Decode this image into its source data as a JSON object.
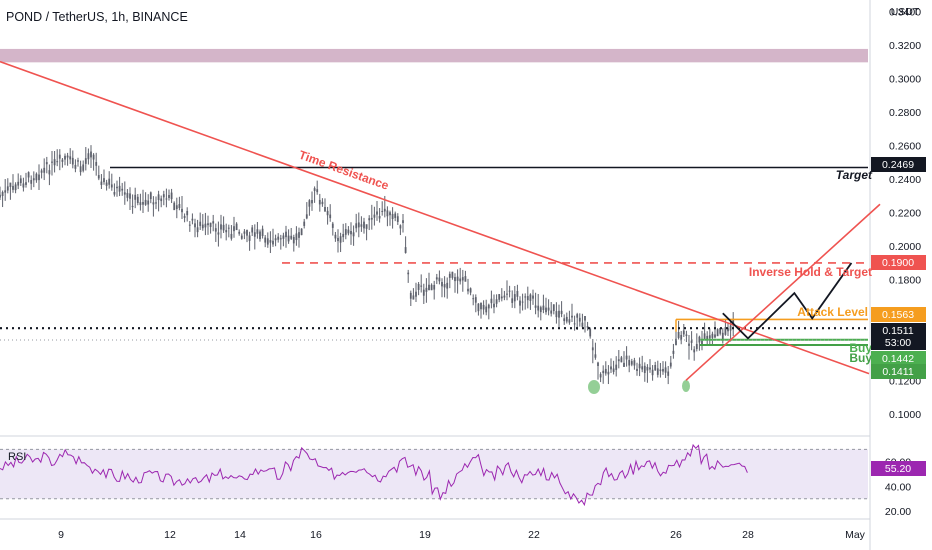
{
  "header": {
    "symbol": "POND / TetherUS, 1h, BINANCE"
  },
  "price_axis": {
    "unit": "USDT",
    "ticks": [
      "0.3400",
      "0.3200",
      "0.3000",
      "0.2800",
      "0.2600",
      "0.2400",
      "0.2200",
      "0.2000",
      "0.1800",
      "0.1200",
      "0.1000"
    ]
  },
  "time_axis": {
    "ticks": [
      "9",
      "12",
      "14",
      "16",
      "19",
      "22",
      "26",
      "28",
      "May"
    ]
  },
  "annotations": {
    "time_resistance": "Time Resistance",
    "target": "Target",
    "inverse": "Inverse Hold & Target",
    "attack": "Attack Level",
    "buy1": "Buy",
    "buy2": "Buy"
  },
  "price_labels": {
    "target": "0.2469",
    "inverse": "0.1900",
    "attack": "0.1563",
    "last": "0.1511",
    "countdown": "53:00",
    "buy1": "0.1442",
    "buy2": "0.1411"
  },
  "rsi": {
    "title": "RSI",
    "value_label": "55.20",
    "ticks": [
      "60.00",
      "40.00",
      "20.00"
    ]
  },
  "colors": {
    "red": "#ef5350",
    "black": "#131722",
    "orange": "#f59d1f",
    "green": "#4caf50",
    "green_dark": "#43a047",
    "purple": "#9c27b0",
    "resistance_zone": "#c9a3bb",
    "rsi_band": "#ede7f6",
    "candle": "#5d606b"
  },
  "chart_data": {
    "type": "line",
    "title": "POND / TetherUS, 1h, BINANCE",
    "x_ticks": [
      "9",
      "12",
      "14",
      "16",
      "19",
      "22",
      "26",
      "28",
      "May"
    ],
    "y_unit": "USDT",
    "ylim": [
      0.088,
      0.342
    ],
    "price_path": [
      {
        "x": "8",
        "y": 0.23
      },
      {
        "x": "8.7",
        "y": 0.245
      },
      {
        "x": "9.2",
        "y": 0.252
      },
      {
        "x": "9.6",
        "y": 0.246
      },
      {
        "x": "9.8",
        "y": 0.259
      },
      {
        "x": "10.1",
        "y": 0.24
      },
      {
        "x": "11",
        "y": 0.226
      },
      {
        "x": "12",
        "y": 0.229
      },
      {
        "x": "12.7",
        "y": 0.212
      },
      {
        "x": "14",
        "y": 0.209
      },
      {
        "x": "15",
        "y": 0.203
      },
      {
        "x": "15.5",
        "y": 0.205
      },
      {
        "x": "16",
        "y": 0.233
      },
      {
        "x": "16.6",
        "y": 0.205
      },
      {
        "x": "17.3",
        "y": 0.212
      },
      {
        "x": "18",
        "y": 0.222
      },
      {
        "x": "18.4",
        "y": 0.212
      },
      {
        "x": "18.6",
        "y": 0.172
      },
      {
        "x": "19.5",
        "y": 0.179
      },
      {
        "x": "20",
        "y": 0.182
      },
      {
        "x": "20.6",
        "y": 0.162
      },
      {
        "x": "21.2",
        "y": 0.172
      },
      {
        "x": "22",
        "y": 0.166
      },
      {
        "x": "22.7",
        "y": 0.16
      },
      {
        "x": "23.5",
        "y": 0.153
      },
      {
        "x": "23.9",
        "y": 0.122
      },
      {
        "x": "24.5",
        "y": 0.133
      },
      {
        "x": "25",
        "y": 0.126
      },
      {
        "x": "25.8",
        "y": 0.126
      },
      {
        "x": "26.1",
        "y": 0.149
      },
      {
        "x": "26.5",
        "y": 0.14
      },
      {
        "x": "27.6",
        "y": 0.152
      }
    ],
    "levels": [
      {
        "name": "Target",
        "value": 0.2469,
        "color": "#131722",
        "style": "solid"
      },
      {
        "name": "Inverse Hold & Target",
        "value": 0.19,
        "color": "#ef5350",
        "style": "dashed"
      },
      {
        "name": "Attack Level",
        "value": 0.1563,
        "color": "#f59d1f",
        "style": "solid"
      },
      {
        "name": "Buy",
        "value": 0.1442,
        "color": "#4caf50",
        "style": "solid"
      },
      {
        "name": "Buy",
        "value": 0.1411,
        "color": "#43a047",
        "style": "solid"
      },
      {
        "name": "last",
        "value": 0.1511,
        "color": "#131722",
        "style": "dotted"
      }
    ],
    "resistance_zone": [
      0.3096,
      0.3176
    ],
    "projection": [
      {
        "x": "27.3",
        "y": 0.16
      },
      {
        "x": "28",
        "y": 0.145
      },
      {
        "x": "29.3",
        "y": 0.172
      },
      {
        "x": "29.8",
        "y": 0.157
      },
      {
        "x": "30.9",
        "y": 0.19
      }
    ],
    "time_resistance_line": [
      {
        "x": "8",
        "y": 0.31
      },
      {
        "x": "May",
        "y": 0.127
      }
    ],
    "rising_trendline": [
      {
        "x": "26.3",
        "y": 0.12
      },
      {
        "x": "May",
        "y": 0.225
      }
    ],
    "rsi": {
      "ylim": [
        16,
        76
      ],
      "overbought": 70,
      "oversold": 30,
      "last": 55.2,
      "values": [
        56,
        58,
        60,
        62,
        61,
        64,
        60,
        63,
        67,
        62,
        59,
        55,
        54,
        50,
        47,
        49,
        45,
        47,
        50,
        48,
        46,
        44,
        45,
        47,
        43,
        46,
        48,
        50,
        47,
        45,
        49,
        52,
        55,
        51,
        48,
        56,
        63,
        69,
        60,
        55,
        51,
        50,
        53,
        55,
        57,
        52,
        48,
        52,
        56,
        60,
        57,
        53,
        48,
        38,
        33,
        42,
        50,
        57,
        62,
        53,
        48,
        52,
        56,
        51,
        47,
        50,
        53,
        49,
        46,
        38,
        31,
        27,
        37,
        44,
        51,
        47,
        50,
        54,
        58,
        60,
        56,
        52,
        55,
        60,
        64,
        70,
        62,
        56,
        58,
        60,
        57,
        55
      ]
    }
  }
}
